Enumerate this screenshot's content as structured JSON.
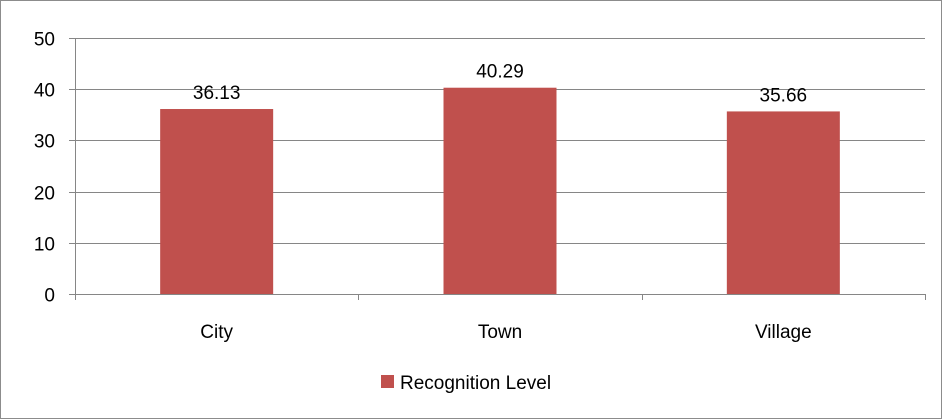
{
  "chart_data": {
    "type": "bar",
    "title": "",
    "xlabel": "",
    "ylabel": "",
    "categories": [
      "City",
      "Town",
      "Village"
    ],
    "series": [
      {
        "name": "Recognition Level",
        "values": [
          36.13,
          40.29,
          35.66
        ],
        "color": "#c0504d"
      }
    ],
    "data_labels": [
      "36.13",
      "40.29",
      "35.66"
    ],
    "ylim": [
      0,
      50
    ],
    "yticks": [
      0,
      10,
      20,
      30,
      40,
      50
    ],
    "ytick_labels": [
      "0",
      "10",
      "20",
      "30",
      "40",
      "50"
    ],
    "grid": true,
    "legend_position": "bottom"
  },
  "colors": {
    "bar": "#c0504d",
    "gridline": "#868686",
    "axis": "#868686"
  }
}
